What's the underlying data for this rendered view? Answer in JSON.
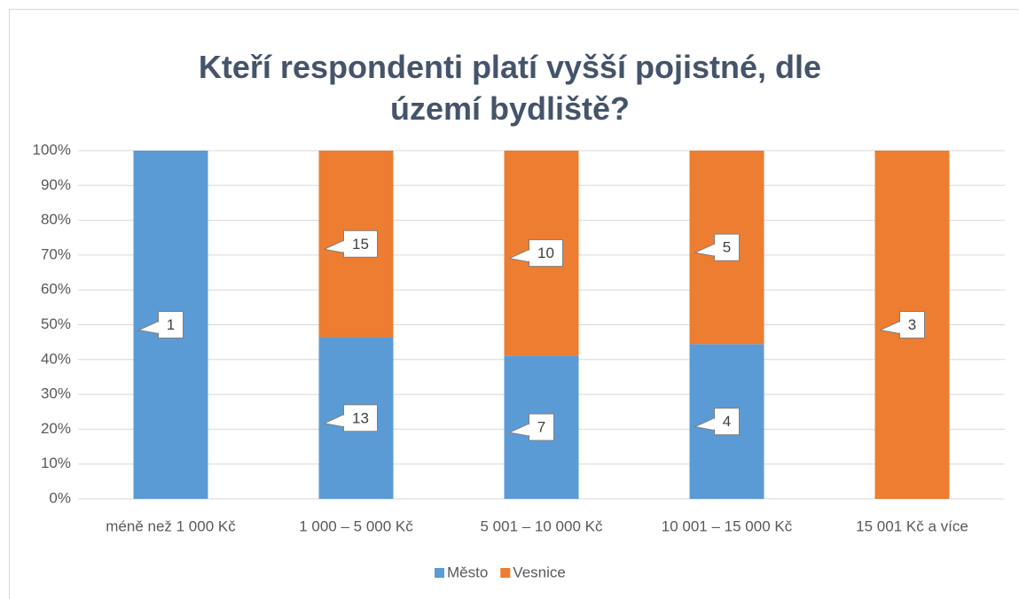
{
  "chart_data": {
    "type": "stacked_percent_bar",
    "title": "Kteří respondenti platí vyšší pojistné, dle území bydliště?",
    "categories": [
      "méně než 1 000 Kč",
      "1 000 – 5 000 Kč",
      "5 001 – 10 000 Kč",
      "10 001 – 15 000 Kč",
      "15 001 Kč a více"
    ],
    "series": [
      {
        "name": "Město",
        "color": "#5b9bd5",
        "values": [
          1,
          13,
          7,
          4,
          0
        ]
      },
      {
        "name": "Vesnice",
        "color": "#ed7d31",
        "values": [
          0,
          15,
          10,
          5,
          3
        ]
      }
    ],
    "ylim": [
      0,
      100
    ],
    "yticks": [
      {
        "value": 0,
        "label": "0%"
      },
      {
        "value": 10,
        "label": "10%"
      },
      {
        "value": 20,
        "label": "20%"
      },
      {
        "value": 30,
        "label": "30%"
      },
      {
        "value": 40,
        "label": "40%"
      },
      {
        "value": 50,
        "label": "50%"
      },
      {
        "value": 60,
        "label": "60%"
      },
      {
        "value": 70,
        "label": "70%"
      },
      {
        "value": 80,
        "label": "80%"
      },
      {
        "value": 90,
        "label": "90%"
      },
      {
        "value": 100,
        "label": "100%"
      }
    ],
    "grid": true,
    "legend": "bottom"
  }
}
